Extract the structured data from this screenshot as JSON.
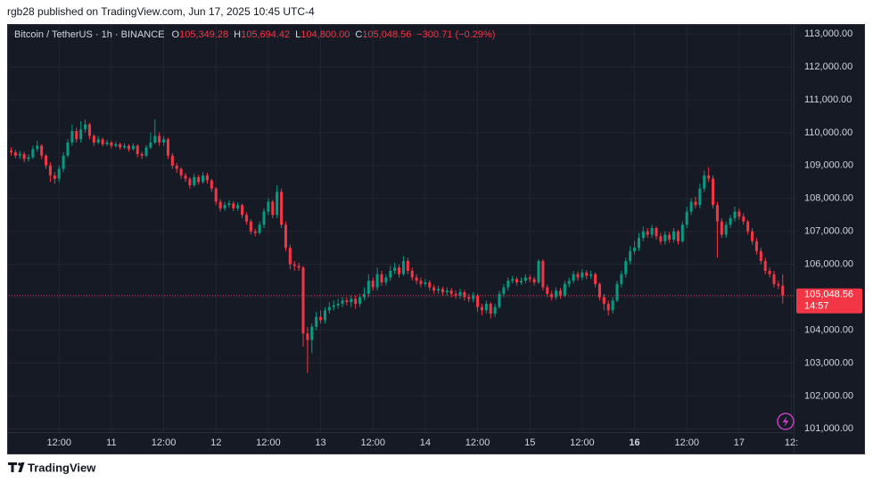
{
  "header": {
    "text": "rgb28 published on TradingView.com, Jun 17, 2025 10:45 UTC-4"
  },
  "footer": {
    "brand": "TradingView"
  },
  "chart_data": {
    "type": "candlestick",
    "legend": {
      "symbol": "Bitcoin / TetherUS · 1h · BINANCE",
      "fields": [
        {
          "key": "O",
          "value": "105,349.28"
        },
        {
          "key": "H",
          "value": "105,694.42"
        },
        {
          "key": "L",
          "value": "104,800.00"
        },
        {
          "key": "C",
          "value": "105,048.56"
        }
      ],
      "change": "−300.71 (−0.29%)"
    },
    "up_color": "#089981",
    "down_color": "#f23645",
    "grid": true,
    "xlim": [
      0.5,
      180.5
    ],
    "xticks": [
      {
        "value": 12,
        "label": "12:00"
      },
      {
        "value": 24,
        "label": "11"
      },
      {
        "value": 36,
        "label": "12:00"
      },
      {
        "value": 48,
        "label": "12"
      },
      {
        "value": 60,
        "label": "12:00"
      },
      {
        "value": 72,
        "label": "13"
      },
      {
        "value": 84,
        "label": "12:00"
      },
      {
        "value": 96,
        "label": "14"
      },
      {
        "value": 108,
        "label": "12:00"
      },
      {
        "value": 120,
        "label": "15"
      },
      {
        "value": 132,
        "label": "12:00"
      },
      {
        "value": 144,
        "label": "16",
        "bold": true
      },
      {
        "value": 156,
        "label": "12:00"
      },
      {
        "value": 168,
        "label": "17"
      },
      {
        "value": 180,
        "label": "12:"
      }
    ],
    "ylim": [
      100900,
      113300
    ],
    "yticks": [
      {
        "value": 101000,
        "label": "101,000.00"
      },
      {
        "value": 102000,
        "label": "102,000.00"
      },
      {
        "value": 103000,
        "label": "103,000.00"
      },
      {
        "value": 104000,
        "label": "104,000.00"
      },
      {
        "value": 105000,
        "label": "105,000.00"
      },
      {
        "value": 106000,
        "label": "106,000.00"
      },
      {
        "value": 107000,
        "label": "107,000.00"
      },
      {
        "value": 108000,
        "label": "108,000.00"
      },
      {
        "value": 109000,
        "label": "109,000.00"
      },
      {
        "value": 110000,
        "label": "110,000.00"
      },
      {
        "value": 111000,
        "label": "111,000.00"
      },
      {
        "value": 112000,
        "label": "112,000.00"
      },
      {
        "value": 113000,
        "label": "113,000.00"
      }
    ],
    "last_price": {
      "value": 105048.56,
      "label": "105,048.56",
      "countdown": "14:57"
    },
    "x": [
      1,
      2,
      3,
      4,
      5,
      6,
      7,
      8,
      9,
      10,
      11,
      12,
      13,
      14,
      15,
      16,
      17,
      18,
      19,
      20,
      21,
      22,
      23,
      24,
      25,
      26,
      27,
      28,
      29,
      30,
      31,
      32,
      33,
      34,
      35,
      36,
      37,
      38,
      39,
      40,
      41,
      42,
      43,
      44,
      45,
      46,
      47,
      48,
      49,
      50,
      51,
      52,
      53,
      54,
      55,
      56,
      57,
      58,
      59,
      60,
      61,
      62,
      63,
      64,
      65,
      66,
      67,
      68,
      69,
      70,
      71,
      72,
      73,
      74,
      75,
      76,
      77,
      78,
      79,
      80,
      81,
      82,
      83,
      84,
      85,
      86,
      87,
      88,
      89,
      90,
      91,
      92,
      93,
      94,
      95,
      96,
      97,
      98,
      99,
      100,
      101,
      102,
      103,
      104,
      105,
      106,
      107,
      108,
      109,
      110,
      111,
      112,
      113,
      114,
      115,
      116,
      117,
      118,
      119,
      120,
      121,
      122,
      123,
      124,
      125,
      126,
      127,
      128,
      129,
      130,
      131,
      132,
      133,
      134,
      135,
      136,
      137,
      138,
      139,
      140,
      141,
      142,
      143,
      144,
      145,
      146,
      147,
      148,
      149,
      150,
      151,
      152,
      153,
      154,
      155,
      156,
      157,
      158,
      159,
      160,
      161,
      162,
      163,
      164,
      165,
      166,
      167,
      168,
      169,
      170,
      171,
      172,
      173,
      174,
      175,
      176,
      177,
      178
    ],
    "open": [
      109450,
      109400,
      109300,
      109350,
      109200,
      109250,
      109500,
      109600,
      109300,
      109000,
      108700,
      108600,
      108900,
      109300,
      109700,
      110050,
      109800,
      110100,
      110250,
      109900,
      109700,
      109800,
      109650,
      109700,
      109600,
      109650,
      109550,
      109600,
      109500,
      109600,
      109350,
      109300,
      109550,
      109700,
      109900,
      109700,
      109800,
      109300,
      109000,
      108900,
      108700,
      108600,
      108400,
      108650,
      108500,
      108700,
      108550,
      108300,
      107900,
      107700,
      107800,
      107850,
      107700,
      107800,
      107500,
      107300,
      107000,
      106950,
      107200,
      107600,
      107900,
      107500,
      108200,
      107200,
      106500,
      106000,
      105950,
      105900,
      103900,
      103700,
      104100,
      104400,
      104300,
      104600,
      104700,
      104750,
      104800,
      104900,
      104850,
      104950,
      104800,
      105000,
      105100,
      105500,
      105300,
      105700,
      105450,
      105600,
      105800,
      105900,
      105700,
      106100,
      105800,
      105600,
      105500,
      105400,
      105450,
      105300,
      105200,
      105250,
      105150,
      105200,
      105100,
      105050,
      105150,
      105000,
      104950,
      105050,
      104700,
      104600,
      104800,
      104500,
      104700,
      105100,
      105300,
      105500,
      105550,
      105450,
      105500,
      105600,
      105550,
      105450,
      106100,
      105300,
      105100,
      105000,
      105200,
      105050,
      105400,
      105500,
      105700,
      105600,
      105750,
      105650,
      105700,
      105400,
      105000,
      104800,
      104600,
      104900,
      105400,
      105700,
      106100,
      106400,
      106500,
      106800,
      107000,
      106900,
      107100,
      106850,
      106700,
      106900,
      106750,
      107000,
      106700,
      107200,
      107600,
      107900,
      107800,
      108300,
      108700,
      108600,
      107800,
      107300,
      106900,
      107200,
      107400,
      107600,
      107450,
      107300,
      107000,
      106700,
      106400,
      106100,
      105800,
      105700,
      105400,
      105349.28
    ],
    "high": [
      109550,
      109480,
      109450,
      109420,
      109350,
      109600,
      109750,
      109650,
      109350,
      109100,
      108800,
      109000,
      109400,
      109800,
      110250,
      110150,
      110350,
      110400,
      110300,
      109950,
      109900,
      109850,
      109780,
      109750,
      109720,
      109700,
      109680,
      109650,
      109680,
      109650,
      109420,
      109620,
      110000,
      110400,
      110000,
      109900,
      109850,
      109380,
      109080,
      108950,
      108780,
      108650,
      108750,
      108720,
      108800,
      108780,
      108600,
      108350,
      107980,
      107900,
      107950,
      107920,
      107880,
      107850,
      107580,
      107380,
      107080,
      107300,
      107700,
      108000,
      107950,
      108400,
      108300,
      107300,
      106600,
      106100,
      106050,
      105950,
      104100,
      104200,
      104550,
      104600,
      104700,
      104850,
      104900,
      104950,
      105000,
      105000,
      105050,
      105050,
      105100,
      105300,
      105700,
      105600,
      105900,
      105800,
      105700,
      105950,
      106050,
      106000,
      106250,
      106200,
      105900,
      105700,
      105600,
      105550,
      105520,
      105380,
      105350,
      105320,
      105300,
      105280,
      105200,
      105250,
      105220,
      105100,
      105150,
      105100,
      104800,
      104900,
      104850,
      104800,
      105200,
      105400,
      105600,
      105650,
      105620,
      105600,
      105700,
      105680,
      105620,
      106150,
      106150,
      105380,
      105200,
      105300,
      105280,
      105500,
      105600,
      105800,
      105780,
      105850,
      105820,
      105800,
      105750,
      105450,
      105100,
      104900,
      105000,
      105500,
      105800,
      106200,
      106550,
      106700,
      106950,
      107150,
      107100,
      107200,
      107150,
      106950,
      107000,
      106980,
      107100,
      107050,
      107300,
      107750,
      108000,
      108050,
      108450,
      108850,
      108950,
      108700,
      107900,
      107400,
      107300,
      107500,
      107750,
      107700,
      107550,
      107350,
      107100,
      106800,
      106500,
      106200,
      105900,
      105800,
      105500,
      105694.42
    ],
    "low": [
      109300,
      109220,
      109200,
      109100,
      109120,
      109200,
      109420,
      109200,
      108900,
      108500,
      108450,
      108500,
      108800,
      109250,
      109600,
      109700,
      109700,
      110000,
      109800,
      109600,
      109650,
      109580,
      109600,
      109520,
      109550,
      109480,
      109500,
      109420,
      109450,
      109250,
      109200,
      109250,
      109500,
      109650,
      109600,
      109600,
      109200,
      108900,
      108780,
      108600,
      108500,
      108300,
      108350,
      108420,
      108450,
      108450,
      108200,
      107800,
      107600,
      107620,
      107720,
      107620,
      107620,
      107400,
      107200,
      106900,
      106850,
      106900,
      107100,
      107500,
      107400,
      107400,
      107100,
      106400,
      105850,
      105800,
      105800,
      103500,
      102700,
      103300,
      104000,
      104200,
      104200,
      104500,
      104600,
      104650,
      104700,
      104750,
      104700,
      104650,
      104700,
      104900,
      105000,
      105200,
      105200,
      105350,
      105350,
      105500,
      105700,
      105600,
      105650,
      105700,
      105500,
      105400,
      105300,
      105320,
      105200,
      105100,
      105100,
      105050,
      105050,
      105000,
      104950,
      104950,
      104900,
      104850,
      104850,
      104550,
      104450,
      104500,
      104350,
      104400,
      104650,
      105000,
      105200,
      105420,
      105350,
      105380,
      105420,
      105450,
      105350,
      105400,
      105200,
      105000,
      104900,
      104920,
      104950,
      105000,
      105300,
      105420,
      105500,
      105520,
      105550,
      105550,
      105300,
      104900,
      104600,
      104450,
      104500,
      104850,
      105300,
      105600,
      106000,
      106300,
      106400,
      106700,
      106800,
      106800,
      106750,
      106600,
      106600,
      106650,
      106650,
      106600,
      106650,
      107100,
      107500,
      107700,
      107700,
      108200,
      108500,
      107700,
      106200,
      106800,
      106800,
      107100,
      107300,
      107350,
      107200,
      106900,
      106600,
      106300,
      106000,
      105700,
      105600,
      105300,
      105250,
      104800
    ],
    "close": [
      109400,
      109300,
      109350,
      109200,
      109250,
      109500,
      109600,
      109300,
      109000,
      108700,
      108600,
      108900,
      109300,
      109700,
      110050,
      109800,
      110100,
      110250,
      109900,
      109700,
      109800,
      109650,
      109700,
      109600,
      109650,
      109550,
      109600,
      109500,
      109600,
      109350,
      109300,
      109550,
      109700,
      109900,
      109700,
      109800,
      109300,
      109000,
      108900,
      108700,
      108600,
      108400,
      108650,
      108500,
      108700,
      108550,
      108300,
      107900,
      107700,
      107800,
      107850,
      107700,
      107800,
      107500,
      107300,
      107000,
      106950,
      107200,
      107600,
      107900,
      107500,
      108200,
      107200,
      106500,
      106000,
      105950,
      105900,
      103900,
      103700,
      104100,
      104400,
      104300,
      104600,
      104700,
      104750,
      104800,
      104900,
      104850,
      104950,
      104800,
      105000,
      105100,
      105500,
      105300,
      105700,
      105450,
      105600,
      105800,
      105900,
      105700,
      106100,
      105800,
      105600,
      105500,
      105400,
      105450,
      105300,
      105200,
      105250,
      105150,
      105200,
      105100,
      105050,
      105150,
      105000,
      104950,
      105050,
      104700,
      104600,
      104800,
      104500,
      104700,
      105100,
      105300,
      105500,
      105550,
      105450,
      105500,
      105600,
      105550,
      105450,
      106100,
      105300,
      105100,
      105000,
      105200,
      105050,
      105400,
      105500,
      105700,
      105600,
      105750,
      105650,
      105700,
      105400,
      105000,
      104800,
      104600,
      104900,
      105400,
      105700,
      106100,
      106400,
      106500,
      106800,
      107000,
      106900,
      107100,
      106850,
      106700,
      106900,
      106750,
      107000,
      106700,
      107200,
      107600,
      107900,
      107800,
      108300,
      108700,
      108600,
      107800,
      107300,
      106900,
      107200,
      107400,
      107600,
      107450,
      107300,
      107000,
      106700,
      106400,
      106100,
      105800,
      105700,
      105400,
      105350,
      105048.56
    ]
  }
}
